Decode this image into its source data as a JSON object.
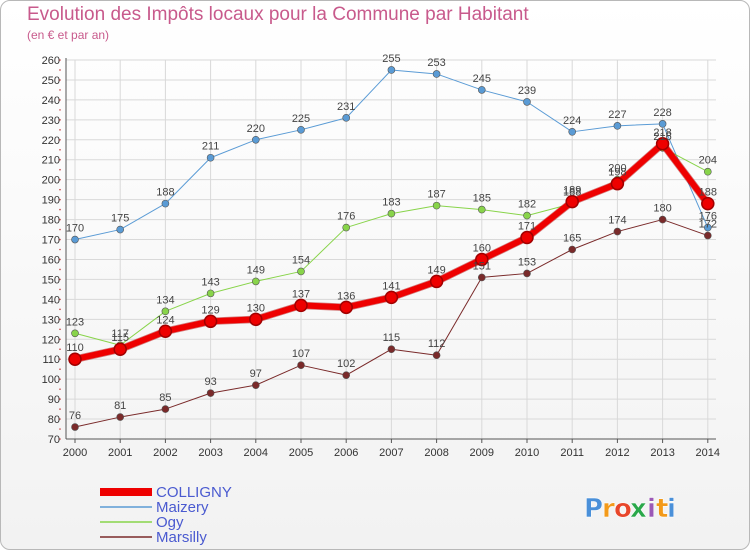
{
  "title": "Evolution des Impôts locaux pour la Commune par Habitant",
  "subtitle": "(en € et par an)",
  "brand": {
    "name": "Proxiti",
    "letters": [
      "P",
      "r",
      "o",
      "x",
      "i",
      "t",
      "i"
    ],
    "colors": [
      "#4a90d9",
      "#f39a1a",
      "#e8462a",
      "#2aa84a",
      "#9b59b6",
      "#f39a1a",
      "#4a90d9"
    ]
  },
  "chart_data": {
    "type": "line",
    "title": "Evolution des Impôts locaux pour la Commune par Habitant",
    "subtitle": "(en € et par an)",
    "x": [
      "2000",
      "2001",
      "2002",
      "2003",
      "2004",
      "2005",
      "2006",
      "2007",
      "2008",
      "2009",
      "2010",
      "2011",
      "2012",
      "2013",
      "2014"
    ],
    "ylim": [
      70,
      260
    ],
    "yticks": [
      70,
      80,
      90,
      100,
      110,
      120,
      130,
      140,
      150,
      160,
      170,
      180,
      190,
      200,
      210,
      220,
      230,
      240,
      250,
      260
    ],
    "grid": true,
    "legend_position": "bottom-left",
    "series": [
      {
        "name": "Maizery",
        "color": "#5a9bd5",
        "width": 1,
        "marker": 3.5,
        "values": [
          170,
          175,
          188,
          211,
          220,
          225,
          231,
          255,
          253,
          245,
          239,
          224,
          227,
          228,
          176
        ],
        "labels": [
          "170",
          "175",
          "188",
          "211",
          "220",
          "225",
          "231",
          "255",
          "253",
          "245",
          "239",
          "224",
          "227",
          "228",
          "176"
        ]
      },
      {
        "name": "Ogy",
        "color": "#88d44a",
        "width": 1,
        "marker": 3.5,
        "values": [
          123,
          117,
          134,
          143,
          149,
          154,
          176,
          183,
          187,
          185,
          182,
          188,
          200,
          216,
          204
        ],
        "labels": [
          "123",
          "117",
          "134",
          "143",
          "149",
          "154",
          "176",
          "183",
          "187",
          "185",
          "182",
          "188",
          "200",
          "216",
          "204"
        ]
      },
      {
        "name": "Marsilly",
        "color": "#7a2a2a",
        "width": 1,
        "marker": 3.5,
        "values": [
          76,
          81,
          85,
          93,
          97,
          107,
          102,
          115,
          112,
          151,
          153,
          165,
          174,
          180,
          172
        ],
        "labels": [
          "76",
          "81",
          "85",
          "93",
          "97",
          "107",
          "102",
          "115",
          "112",
          "151",
          "153",
          "165",
          "174",
          "180",
          "172"
        ]
      },
      {
        "name": "COLLIGNY",
        "color": "#ee0000",
        "width": 6,
        "marker": 6,
        "values": [
          110,
          115,
          124,
          129,
          130,
          137,
          136,
          141,
          149,
          160,
          171,
          189,
          198,
          218,
          188
        ],
        "labels": [
          "110",
          "115",
          "124",
          "129",
          "130",
          "137",
          "136",
          "141",
          "149",
          "160",
          "171",
          "189",
          "198",
          "218",
          "188"
        ]
      }
    ],
    "legend": [
      {
        "name": "COLLIGNY",
        "color": "#ee0000"
      },
      {
        "name": "Maizery",
        "color": "#5a9bd5"
      },
      {
        "name": "Ogy",
        "color": "#88d44a"
      },
      {
        "name": "Marsilly",
        "color": "#7a2a2a"
      }
    ]
  }
}
